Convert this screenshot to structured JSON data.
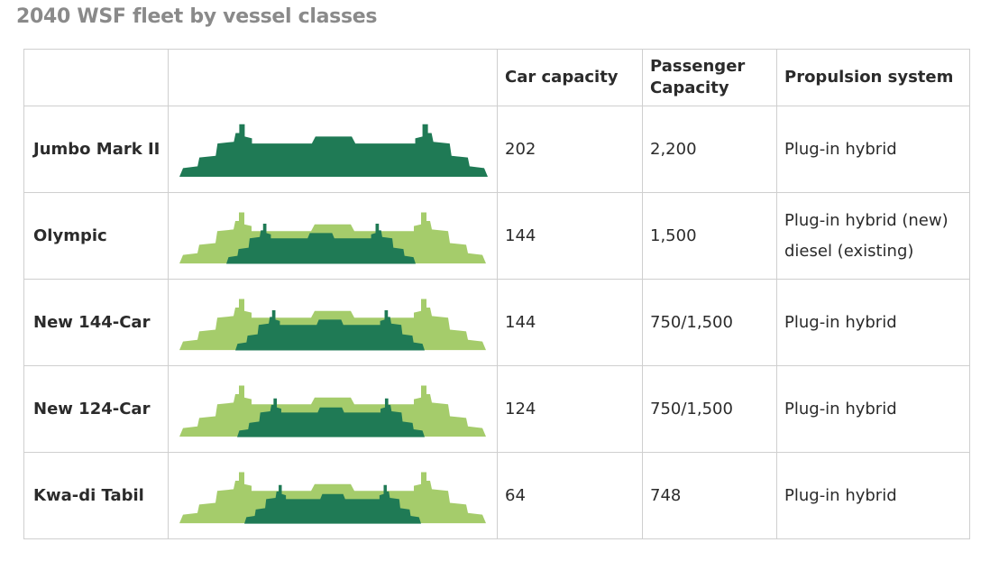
{
  "title": "2040 WSF fleet by vessel classes",
  "table": {
    "header": {
      "car_capacity": "Car capacity",
      "passenger_capacity": "Passenger Capacity",
      "propulsion": "Propulsion system"
    },
    "rows": [
      {
        "name": "Jumbo Mark II",
        "car_capacity": "202",
        "passenger_capacity": "2,200",
        "propulsion": [
          "Plug-in hybrid"
        ]
      },
      {
        "name": "Olympic",
        "car_capacity": "144",
        "passenger_capacity": "1,500",
        "propulsion": [
          "Plug-in hybrid (new)",
          "diesel (existing)"
        ]
      },
      {
        "name": "New 144-Car",
        "car_capacity": "144",
        "passenger_capacity": "750/1,500",
        "propulsion": [
          "Plug-in hybrid"
        ]
      },
      {
        "name": "New 124-Car",
        "car_capacity": "124",
        "passenger_capacity": "750/1,500",
        "propulsion": [
          "Plug-in hybrid"
        ]
      },
      {
        "name": "Kwa-di Tabil",
        "car_capacity": "64",
        "passenger_capacity": "748",
        "propulsion": [
          "Plug-in hybrid"
        ]
      }
    ]
  }
}
